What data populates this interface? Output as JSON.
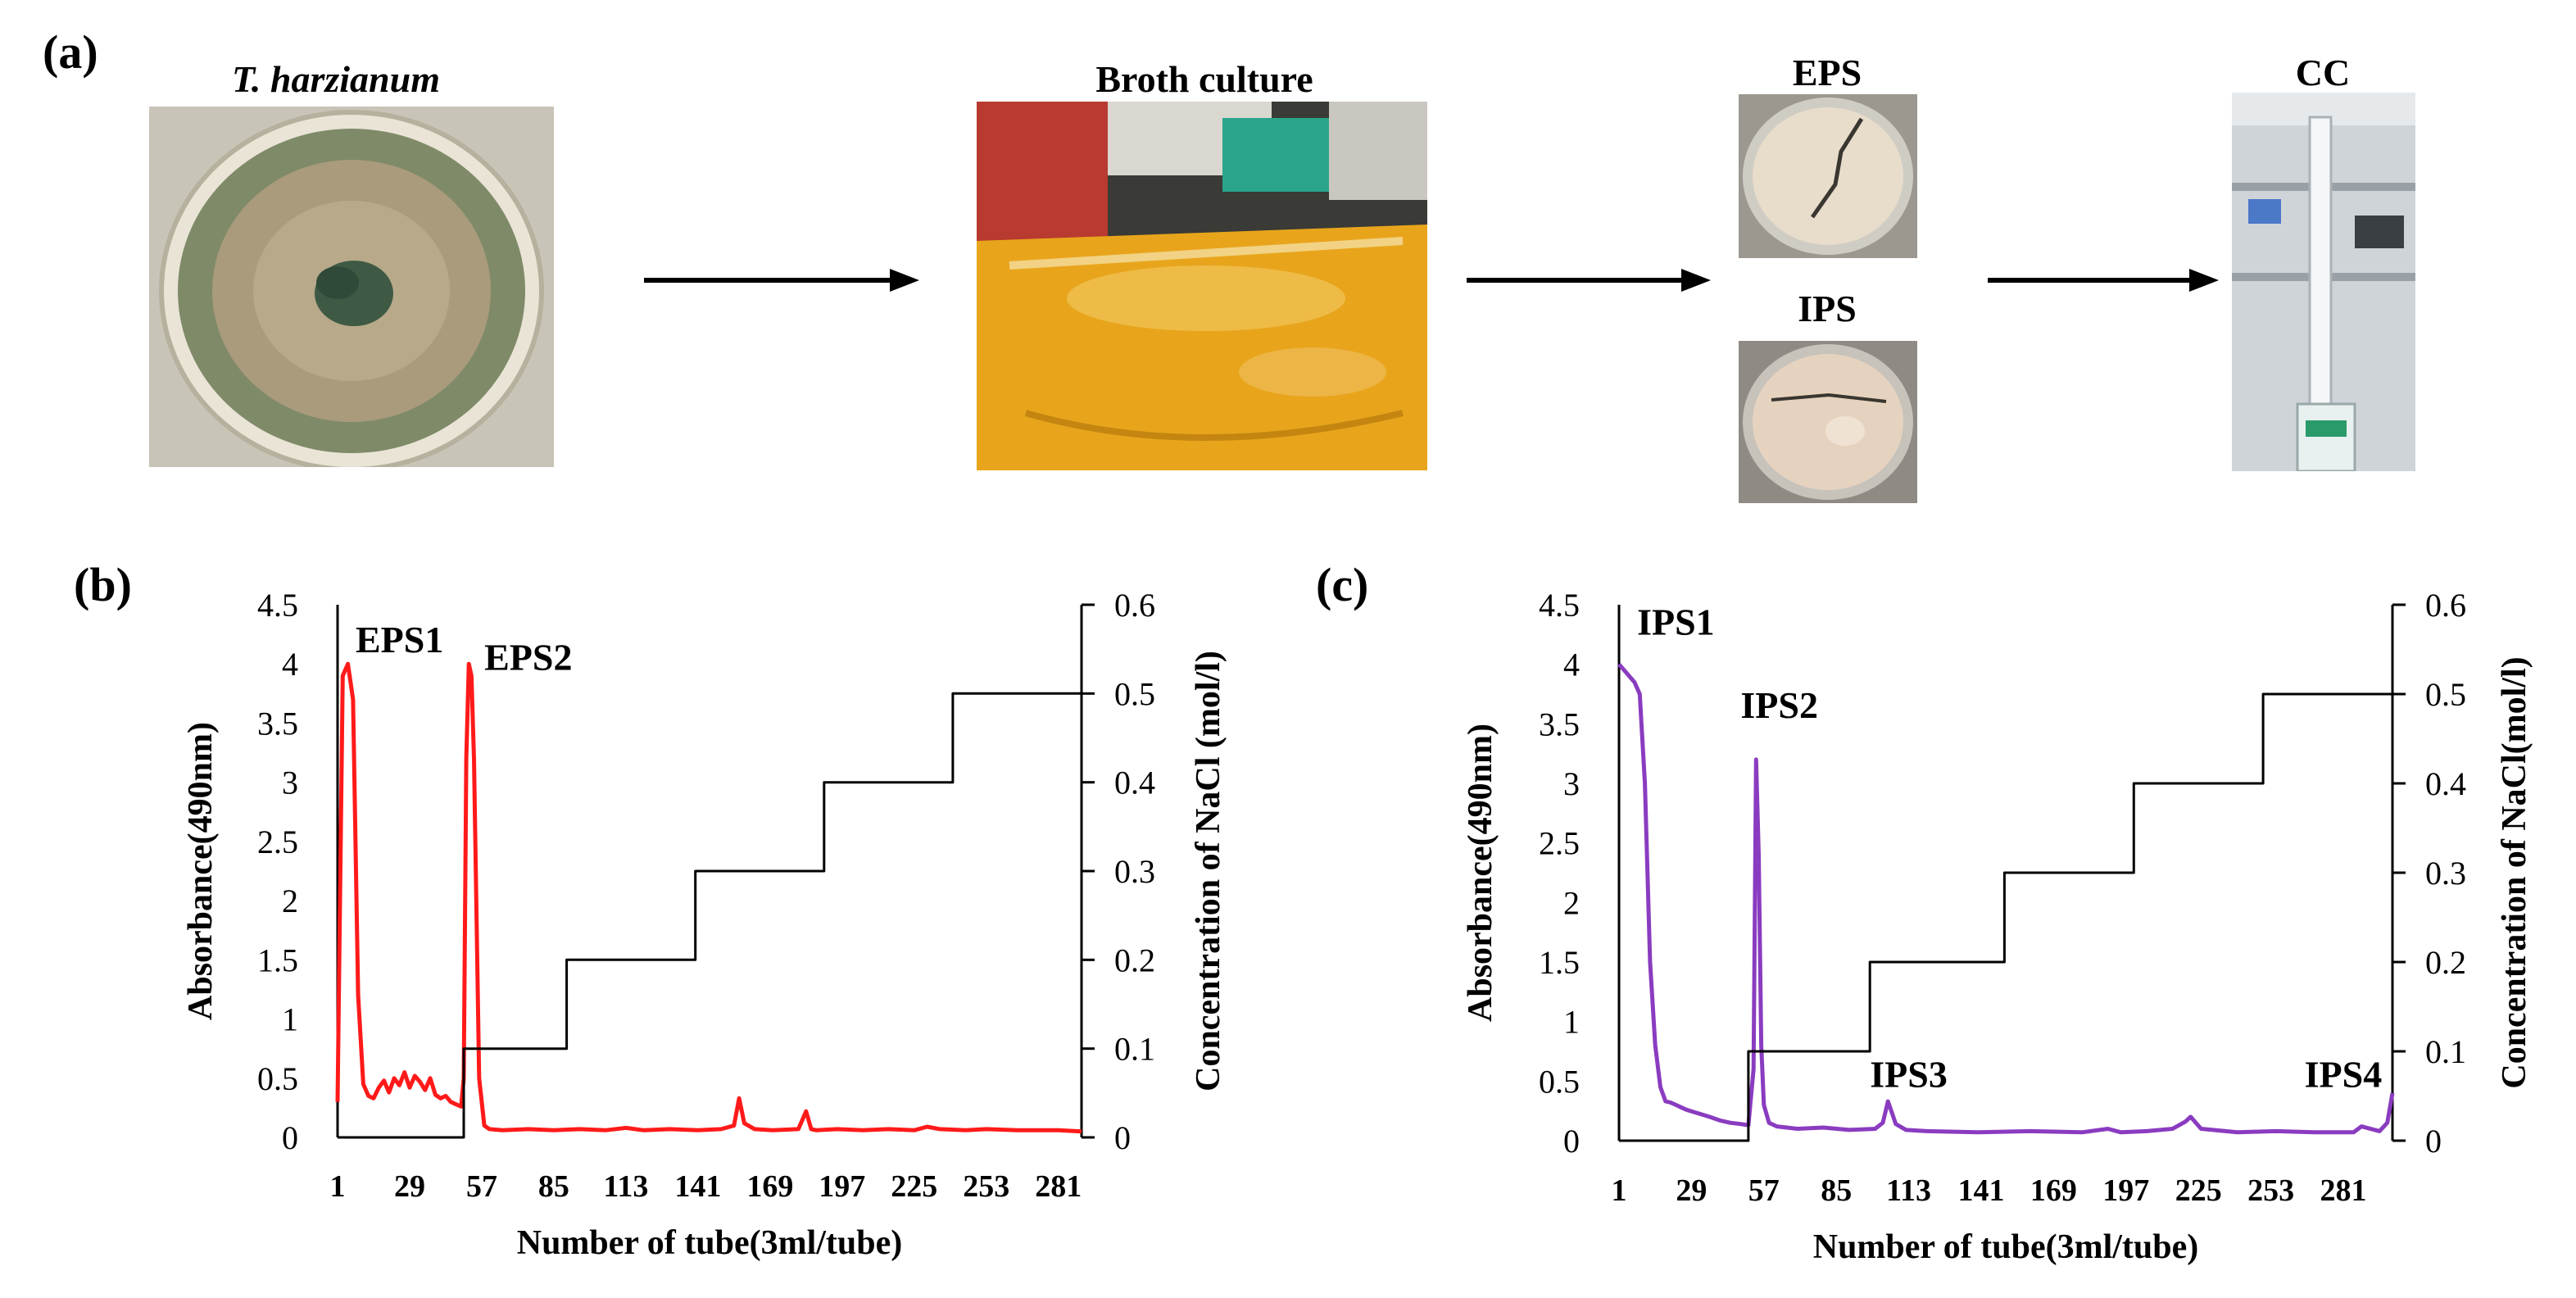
{
  "panels": {
    "a_label": "(a)",
    "b_label": "(b)",
    "c_label": "(c)"
  },
  "photos": {
    "t_harzianum": {
      "title": "T. harzianum",
      "kind": "petri-dish-fungal-culture"
    },
    "broth_culture": {
      "title": "Broth culture",
      "kind": "flask-with-yellow-broth"
    },
    "eps": {
      "title": "EPS",
      "kind": "dried-polysaccharide-dish"
    },
    "ips": {
      "title": "IPS",
      "kind": "dried-polysaccharide-dish"
    },
    "cc": {
      "title": "CC",
      "kind": "column-chromatography-setup"
    }
  },
  "colors": {
    "eps_series": "#ff1a1a",
    "ips_series": "#8a3cc0",
    "nacl_step": "#000000"
  },
  "chart_data": [
    {
      "type": "line",
      "panel": "(b)",
      "xlabel": "Number of tube(3ml/tube)",
      "ylabel": "Absorbance(490nm)",
      "y2label": "Concentration of  NaCl (mol/l)",
      "xticks": [
        1,
        29,
        57,
        85,
        113,
        141,
        169,
        197,
        225,
        253,
        281
      ],
      "xlim": [
        1,
        290
      ],
      "ylim": [
        0,
        4.5
      ],
      "yticks": [
        0,
        0.5,
        1,
        1.5,
        2,
        2.5,
        3,
        3.5,
        4,
        4.5
      ],
      "y2lim": [
        0,
        0.6
      ],
      "y2ticks": [
        0,
        0.1,
        0.2,
        0.3,
        0.4,
        0.5,
        0.6
      ],
      "annotations": [
        {
          "text": "EPS1",
          "x": 8,
          "y": 4.1
        },
        {
          "text": "EPS2",
          "x": 58,
          "y": 3.95
        }
      ],
      "series": [
        {
          "axis": "left",
          "color": "#ff1a1a",
          "x": [
            1,
            3,
            5,
            7,
            9,
            11,
            13,
            15,
            17,
            19,
            21,
            23,
            25,
            27,
            29,
            31,
            33,
            35,
            37,
            39,
            41,
            43,
            45,
            47,
            49,
            50,
            51,
            52,
            53,
            54,
            56,
            58,
            60,
            65,
            75,
            85,
            95,
            105,
            113,
            120,
            130,
            141,
            150,
            155,
            157,
            159,
            163,
            170,
            180,
            183,
            185,
            187,
            195,
            205,
            215,
            225,
            230,
            235,
            245,
            253,
            265,
            281,
            290
          ],
          "values": [
            0.3,
            3.9,
            4.0,
            3.7,
            1.2,
            0.45,
            0.35,
            0.33,
            0.42,
            0.48,
            0.38,
            0.5,
            0.44,
            0.55,
            0.42,
            0.52,
            0.47,
            0.4,
            0.5,
            0.36,
            0.33,
            0.35,
            0.3,
            0.28,
            0.26,
            0.5,
            3.2,
            4.0,
            3.9,
            3.2,
            0.5,
            0.1,
            0.07,
            0.06,
            0.07,
            0.06,
            0.07,
            0.06,
            0.08,
            0.06,
            0.07,
            0.06,
            0.07,
            0.1,
            0.33,
            0.12,
            0.07,
            0.06,
            0.07,
            0.22,
            0.07,
            0.06,
            0.07,
            0.06,
            0.07,
            0.06,
            0.09,
            0.07,
            0.06,
            0.07,
            0.06,
            0.06,
            0.05
          ]
        },
        {
          "axis": "right",
          "color": "#000000",
          "x": [
            1,
            50,
            50,
            90,
            90,
            140,
            140,
            190,
            190,
            240,
            240,
            290
          ],
          "values": [
            0,
            0,
            0.1,
            0.1,
            0.2,
            0.2,
            0.3,
            0.3,
            0.4,
            0.4,
            0.5,
            0.5
          ]
        }
      ]
    },
    {
      "type": "line",
      "panel": "(c)",
      "xlabel": "Number of tube(3ml/tube)",
      "ylabel": "Absorbance(490nm)",
      "y2label": "Concentration of  NaCl(mol/l)",
      "xticks": [
        1,
        29,
        57,
        85,
        113,
        141,
        169,
        197,
        225,
        253,
        281
      ],
      "xlim": [
        1,
        300
      ],
      "ylim": [
        0,
        4.5
      ],
      "yticks": [
        0,
        0.5,
        1,
        1.5,
        2,
        2.5,
        3,
        3.5,
        4,
        4.5
      ],
      "y2lim": [
        0,
        0.6
      ],
      "y2ticks": [
        0,
        0.1,
        0.2,
        0.3,
        0.4,
        0.5,
        0.6
      ],
      "annotations": [
        {
          "text": "IPS1",
          "x": 8,
          "y": 4.25
        },
        {
          "text": "IPS2",
          "x": 48,
          "y": 3.55
        },
        {
          "text": "IPS3",
          "x": 98,
          "y": 0.45
        },
        {
          "text": "IPS4",
          "x": 266,
          "y": 0.45
        }
      ],
      "series": [
        {
          "axis": "left",
          "color": "#8a3cc0",
          "x": [
            1,
            3,
            5,
            7,
            9,
            11,
            13,
            15,
            17,
            19,
            21,
            23,
            25,
            27,
            30,
            33,
            36,
            40,
            44,
            48,
            51,
            53,
            54,
            55,
            56,
            57,
            59,
            62,
            70,
            80,
            90,
            100,
            103,
            105,
            108,
            112,
            120,
            140,
            160,
            180,
            190,
            195,
            205,
            215,
            220,
            222,
            226,
            240,
            255,
            270,
            285,
            288,
            295,
            298,
            300
          ],
          "values": [
            4.0,
            3.95,
            3.9,
            3.85,
            3.75,
            3.0,
            1.5,
            0.8,
            0.45,
            0.33,
            0.32,
            0.3,
            0.28,
            0.26,
            0.24,
            0.22,
            0.2,
            0.17,
            0.15,
            0.14,
            0.13,
            0.6,
            3.2,
            2.4,
            0.8,
            0.3,
            0.15,
            0.12,
            0.1,
            0.11,
            0.09,
            0.1,
            0.15,
            0.33,
            0.14,
            0.09,
            0.08,
            0.07,
            0.08,
            0.07,
            0.1,
            0.07,
            0.08,
            0.1,
            0.16,
            0.2,
            0.1,
            0.07,
            0.08,
            0.07,
            0.07,
            0.12,
            0.08,
            0.15,
            0.4
          ]
        },
        {
          "axis": "right",
          "color": "#000000",
          "x": [
            1,
            51,
            51,
            98,
            98,
            150,
            150,
            200,
            200,
            250,
            250,
            300
          ],
          "values": [
            0,
            0,
            0.1,
            0.1,
            0.2,
            0.2,
            0.3,
            0.3,
            0.4,
            0.4,
            0.5,
            0.5
          ]
        }
      ]
    }
  ]
}
